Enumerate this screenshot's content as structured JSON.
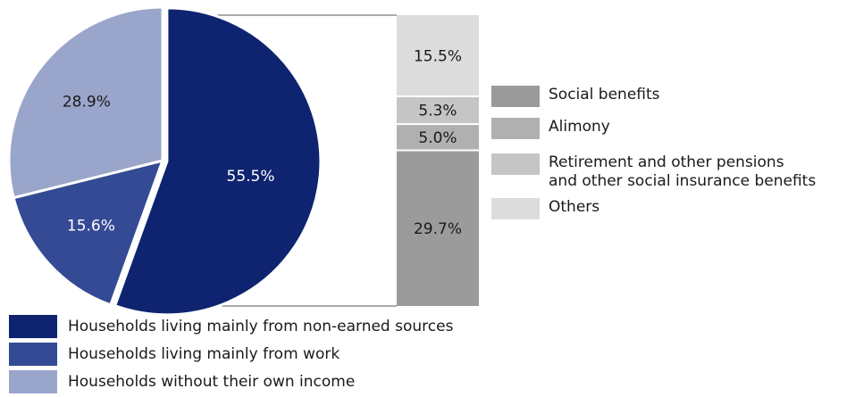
{
  "chart_data": {
    "type": "pie",
    "pie": {
      "slices": [
        {
          "name": "Households living mainly from non-earned sources",
          "value": 55.5,
          "label": "55.5%",
          "color": "#0e2470"
        },
        {
          "name": "Households living mainly from work",
          "value": 15.6,
          "label": "15.6%",
          "color": "#354a95"
        },
        {
          "name": "Households without their own income",
          "value": 28.9,
          "label": "28.9%",
          "color": "#9aa5cb"
        }
      ]
    },
    "stacked_bar": {
      "segments": [
        {
          "name": "Social benefits",
          "value": 29.7,
          "label": "29.7%",
          "color": "#9b9b9b"
        },
        {
          "name": "Alimony",
          "value": 5.0,
          "label": "5.0%",
          "color": "#b0b0b0"
        },
        {
          "name": "Retirement and other pensions and other social insurance benefits",
          "value": 5.3,
          "label": "5.3%",
          "color": "#c5c5c5"
        },
        {
          "name": "Others",
          "value": 15.5,
          "label": "15.5%",
          "color": "#dcdcdc"
        }
      ]
    },
    "legend_bar": [
      {
        "lines": [
          "Social benefits"
        ],
        "color": "#9b9b9b"
      },
      {
        "lines": [
          "Alimony"
        ],
        "color": "#b0b0b0"
      },
      {
        "lines": [
          "Retirement and other pensions",
          "and other social insurance benefits"
        ],
        "color": "#c5c5c5"
      },
      {
        "lines": [
          "Others"
        ],
        "color": "#dcdcdc"
      }
    ],
    "legend_pie": [
      {
        "label": "Households living mainly from non-earned sources",
        "color": "#0e2470"
      },
      {
        "label": "Households living mainly from work",
        "color": "#354a95"
      },
      {
        "label": "Households without their own income",
        "color": "#9aa5cb"
      }
    ]
  }
}
